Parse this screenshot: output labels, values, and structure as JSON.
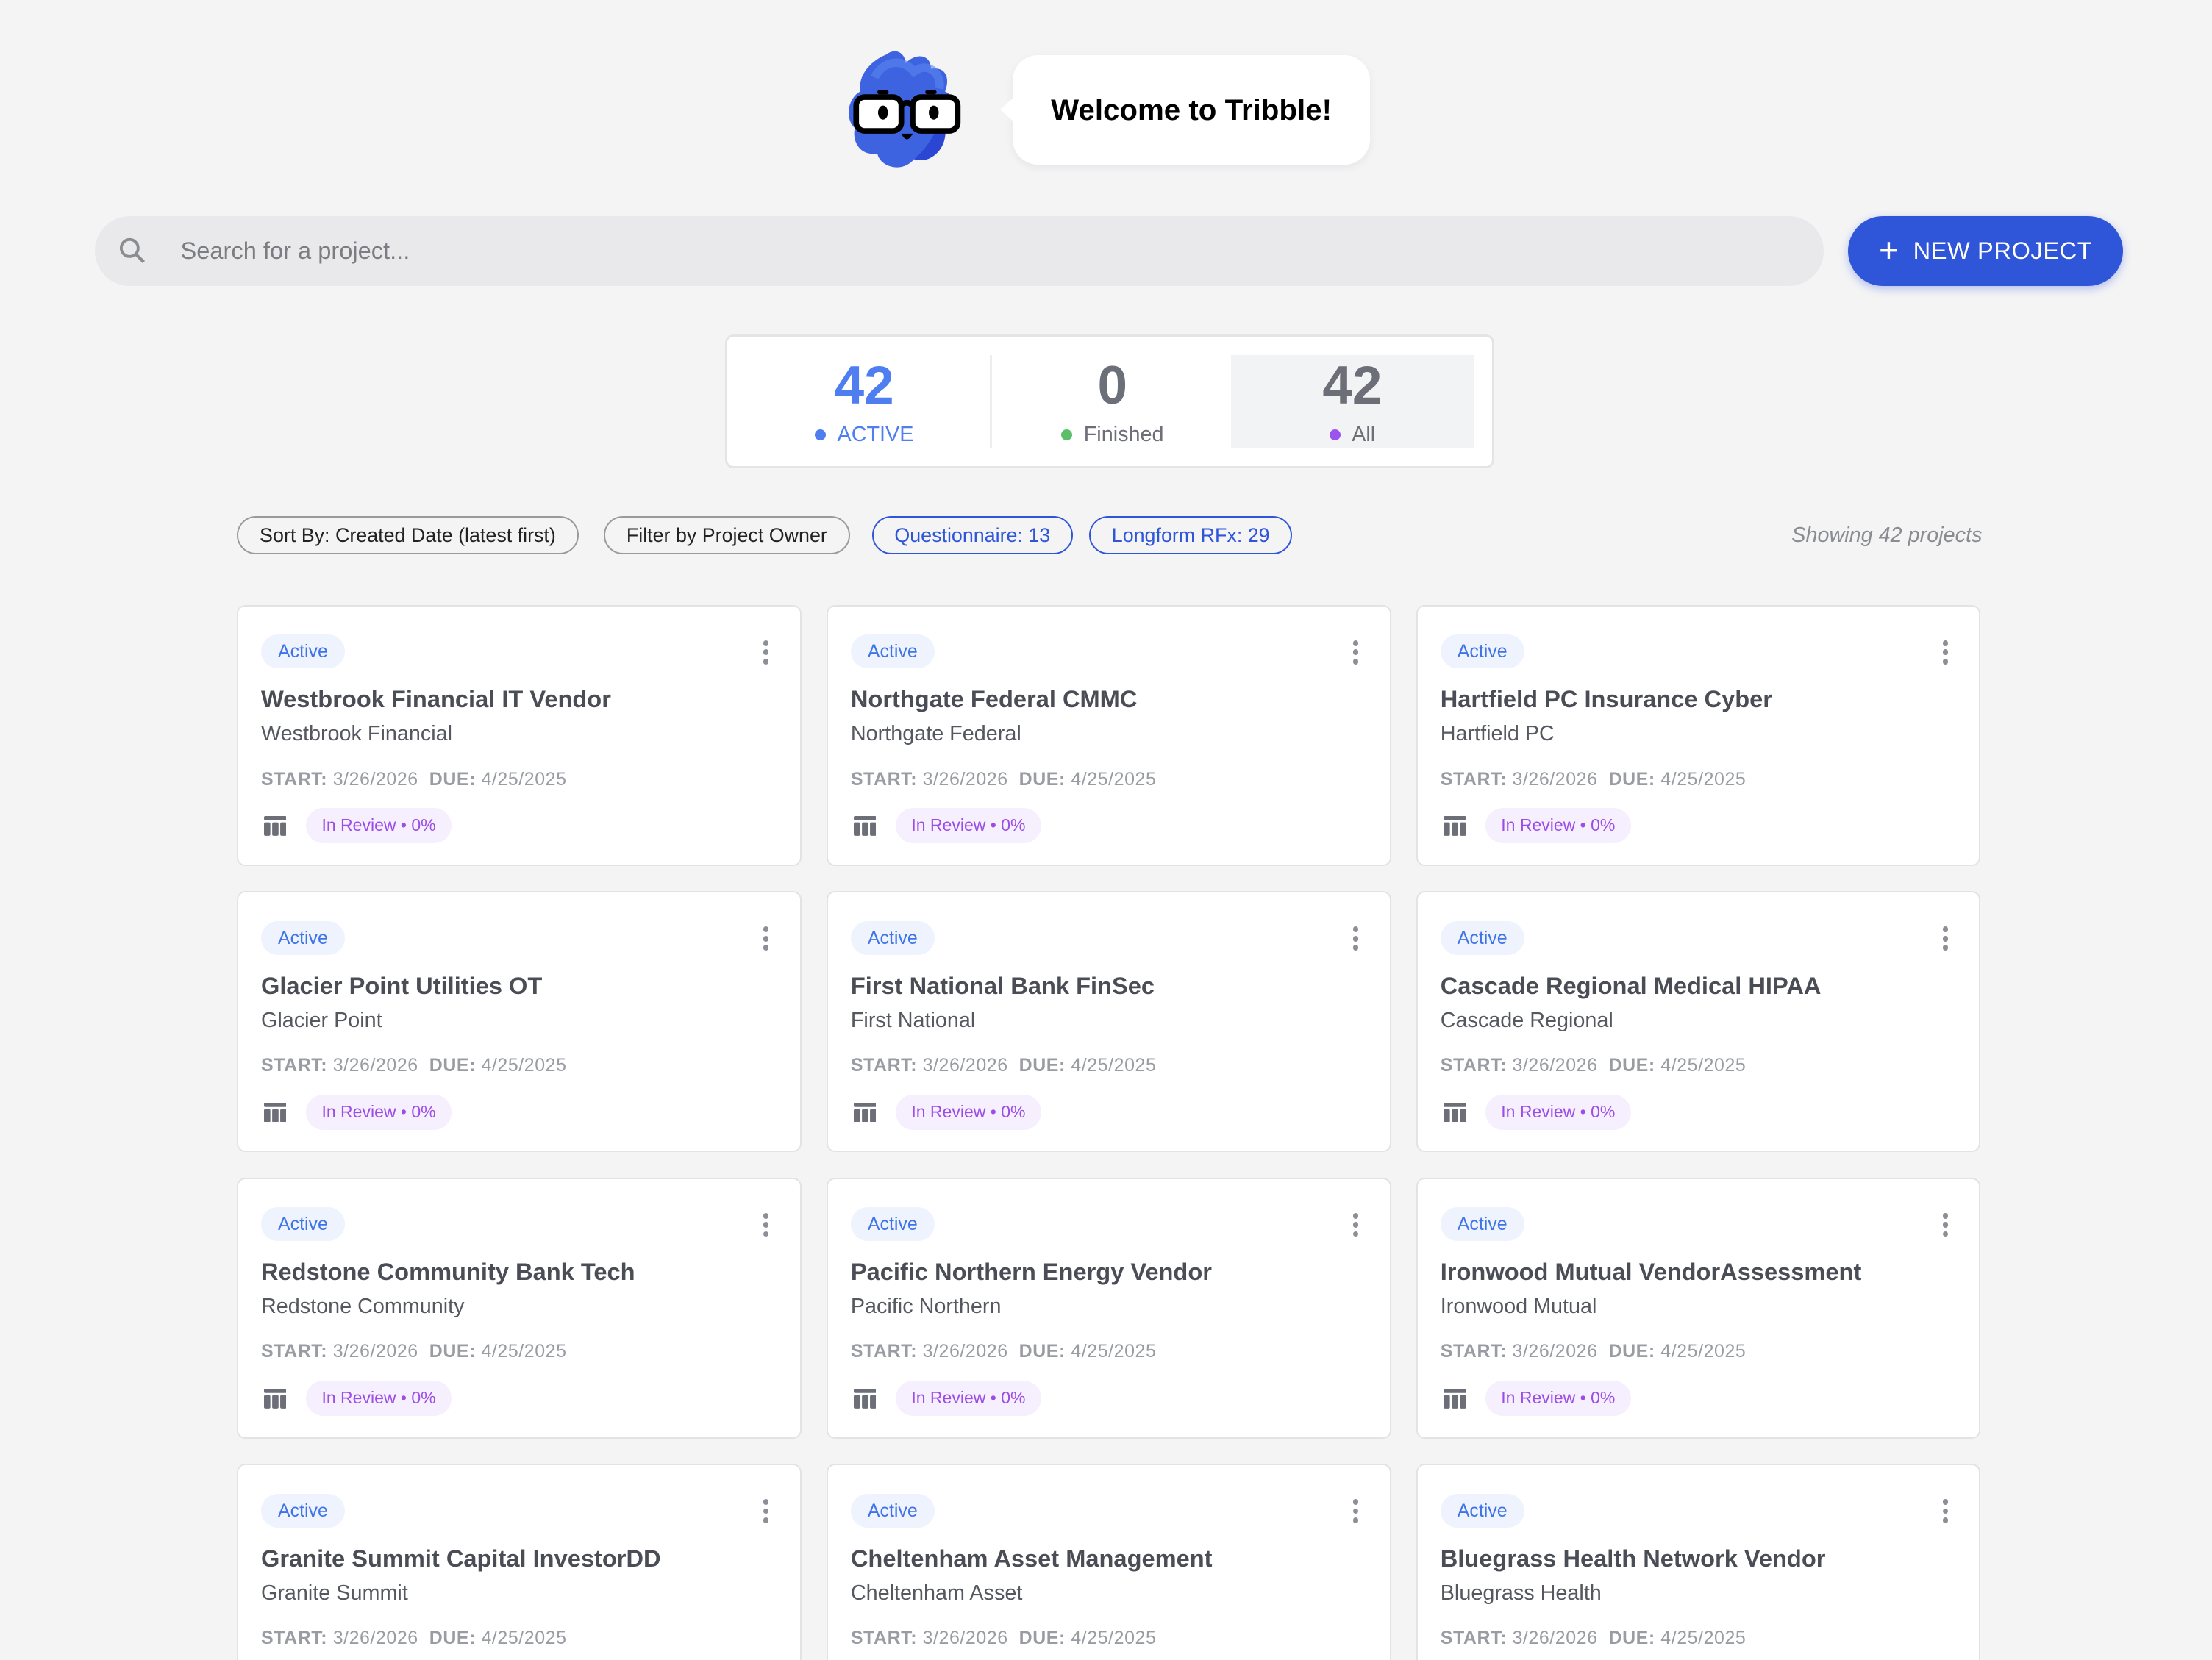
{
  "welcome": {
    "message": "Welcome to Tribble!"
  },
  "search": {
    "placeholder": "Search for a project..."
  },
  "new_project": {
    "label": "NEW PROJECT",
    "icon": "plus-icon"
  },
  "stats": [
    {
      "value": "42",
      "label": "ACTIVE",
      "color": "#4f7ef0"
    },
    {
      "value": "0",
      "label": "Finished",
      "color": "#5bbf6a"
    },
    {
      "value": "42",
      "label": "All",
      "color": "#9b55ee"
    }
  ],
  "filters": {
    "sort": "Sort By: Created Date (latest first)",
    "owner": "Filter by Project Owner",
    "questionnaire": "Questionnaire: 13",
    "longform": "Longform RFx: 29",
    "showing": "Showing 42 projects"
  },
  "colors": {
    "accent": "#2f56d9",
    "active_badge": "#3f74e8",
    "review": "#9b4de6"
  },
  "cards": [
    {
      "status": "Active",
      "title": "Westbrook Financial IT Vendor",
      "company": "Westbrook Financial",
      "start_label": "START:",
      "start": "3/26/2026",
      "due_label": "DUE:",
      "due": "4/25/2025",
      "review": "In Review • 0%"
    },
    {
      "status": "Active",
      "title": "Northgate Federal CMMC",
      "company": "Northgate Federal",
      "start_label": "START:",
      "start": "3/26/2026",
      "due_label": "DUE:",
      "due": "4/25/2025",
      "review": "In Review • 0%"
    },
    {
      "status": "Active",
      "title": "Hartfield PC Insurance Cyber",
      "company": "Hartfield PC",
      "start_label": "START:",
      "start": "3/26/2026",
      "due_label": "DUE:",
      "due": "4/25/2025",
      "review": "In Review • 0%"
    },
    {
      "status": "Active",
      "title": "Glacier Point Utilities OT",
      "company": "Glacier Point",
      "start_label": "START:",
      "start": "3/26/2026",
      "due_label": "DUE:",
      "due": "4/25/2025",
      "review": "In Review • 0%"
    },
    {
      "status": "Active",
      "title": "First National Bank FinSec",
      "company": "First National",
      "start_label": "START:",
      "start": "3/26/2026",
      "due_label": "DUE:",
      "due": "4/25/2025",
      "review": "In Review • 0%"
    },
    {
      "status": "Active",
      "title": "Cascade Regional Medical HIPAA",
      "company": "Cascade Regional",
      "start_label": "START:",
      "start": "3/26/2026",
      "due_label": "DUE:",
      "due": "4/25/2025",
      "review": "In Review • 0%"
    },
    {
      "status": "Active",
      "title": "Redstone Community Bank Tech",
      "company": "Redstone Community",
      "start_label": "START:",
      "start": "3/26/2026",
      "due_label": "DUE:",
      "due": "4/25/2025",
      "review": "In Review • 0%"
    },
    {
      "status": "Active",
      "title": "Pacific Northern Energy Vendor",
      "company": "Pacific Northern",
      "start_label": "START:",
      "start": "3/26/2026",
      "due_label": "DUE:",
      "due": "4/25/2025",
      "review": "In Review • 0%"
    },
    {
      "status": "Active",
      "title": "Ironwood Mutual VendorAssessment",
      "company": "Ironwood Mutual",
      "start_label": "START:",
      "start": "3/26/2026",
      "due_label": "DUE:",
      "due": "4/25/2025",
      "review": "In Review • 0%"
    },
    {
      "status": "Active",
      "title": "Granite Summit Capital InvestorDD",
      "company": "Granite Summit",
      "start_label": "START:",
      "start": "3/26/2026",
      "due_label": "DUE:",
      "due": "4/25/2025"
    },
    {
      "status": "Active",
      "title": "Cheltenham Asset Management",
      "company": "Cheltenham Asset",
      "start_label": "START:",
      "start": "3/26/2026",
      "due_label": "DUE:",
      "due": "4/25/2025"
    },
    {
      "status": "Active",
      "title": "Bluegrass Health Network Vendor",
      "company": "Bluegrass Health",
      "start_label": "START:",
      "start": "3/26/2026",
      "due_label": "DUE:",
      "due": "4/25/2025"
    }
  ]
}
